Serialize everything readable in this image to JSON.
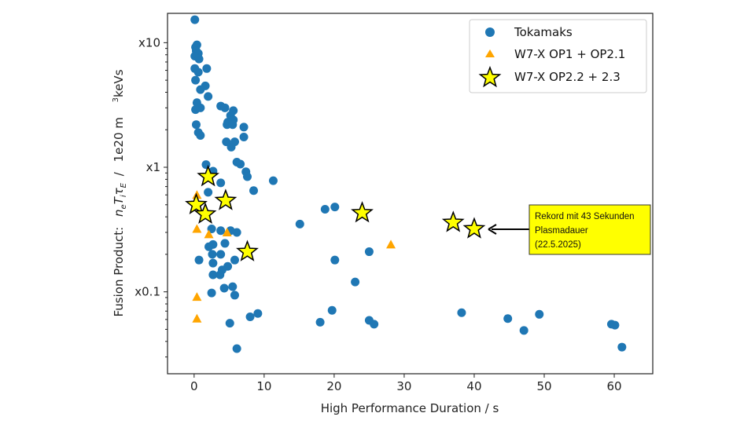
{
  "chart_data": {
    "type": "scatter",
    "xlabel": "High Performance Duration / s",
    "ylabel": {
      "prefix": "Fusion Product:",
      "math": [
        "n",
        "e",
        "T",
        "i",
        "τ",
        "E"
      ],
      "slash": "/",
      "unit": "1e20 m",
      "sup": "3",
      "unit_tail": "keVs"
    },
    "xlim": [
      -3.8,
      65.5
    ],
    "ylim": [
      0.022,
      17.2
    ],
    "yscale": "log",
    "xticks": [
      0,
      10,
      20,
      30,
      40,
      50,
      60
    ],
    "xtick_labels": [
      "0",
      "10",
      "20",
      "30",
      "40",
      "50",
      "60"
    ],
    "yticks": [
      10,
      1,
      0.1
    ],
    "ytick_labels": [
      "x10",
      "x1",
      "x0.1"
    ],
    "grid": false,
    "legend_position": "top-right",
    "colors": {
      "tokamaks": "#1f77b4",
      "op1": "#ffa500",
      "op22": "#ffff00"
    },
    "series": [
      {
        "name": "Tokamaks",
        "marker": "circle",
        "points": [
          [
            0.1,
            15.3
          ],
          [
            0.4,
            9.6
          ],
          [
            0.2,
            9.2
          ],
          [
            0.3,
            8.6
          ],
          [
            0.6,
            8.2
          ],
          [
            0.1,
            7.8
          ],
          [
            0.7,
            7.4
          ],
          [
            1.8,
            6.2
          ],
          [
            0.1,
            6.2
          ],
          [
            0.6,
            5.8
          ],
          [
            0.2,
            5.0
          ],
          [
            1.6,
            4.5
          ],
          [
            0.9,
            4.2
          ],
          [
            2.0,
            3.7
          ],
          [
            0.4,
            3.3
          ],
          [
            3.8,
            3.1
          ],
          [
            4.4,
            3.0
          ],
          [
            0.9,
            3.0
          ],
          [
            0.2,
            2.9
          ],
          [
            5.6,
            2.85
          ],
          [
            5.2,
            2.6
          ],
          [
            5.6,
            2.4
          ],
          [
            4.8,
            2.3
          ],
          [
            4.7,
            2.2
          ],
          [
            5.5,
            2.2
          ],
          [
            7.1,
            2.1
          ],
          [
            0.3,
            2.2
          ],
          [
            0.6,
            1.9
          ],
          [
            0.9,
            1.8
          ],
          [
            7.1,
            1.75
          ],
          [
            4.6,
            1.6
          ],
          [
            5.8,
            1.6
          ],
          [
            5.3,
            1.45
          ],
          [
            6.1,
            1.1
          ],
          [
            6.6,
            1.06
          ],
          [
            7.4,
            0.92
          ],
          [
            7.6,
            0.84
          ],
          [
            1.7,
            1.05
          ],
          [
            2.7,
            0.93
          ],
          [
            3.8,
            0.75
          ],
          [
            2.0,
            0.63
          ],
          [
            8.5,
            0.65
          ],
          [
            11.3,
            0.78
          ],
          [
            2.5,
            0.32
          ],
          [
            3.8,
            0.31
          ],
          [
            6.1,
            0.3
          ],
          [
            5.2,
            0.31
          ],
          [
            4.4,
            0.245
          ],
          [
            2.7,
            0.24
          ],
          [
            2.1,
            0.23
          ],
          [
            2.6,
            0.2
          ],
          [
            3.8,
            0.2
          ],
          [
            0.7,
            0.18
          ],
          [
            2.7,
            0.17
          ],
          [
            5.8,
            0.18
          ],
          [
            4.8,
            0.16
          ],
          [
            4.0,
            0.15
          ],
          [
            2.7,
            0.137
          ],
          [
            3.7,
            0.137
          ],
          [
            5.5,
            0.11
          ],
          [
            4.3,
            0.107
          ],
          [
            2.5,
            0.098
          ],
          [
            5.8,
            0.094
          ],
          [
            8.0,
            0.063
          ],
          [
            9.1,
            0.067
          ],
          [
            5.1,
            0.056
          ],
          [
            6.1,
            0.035
          ],
          [
            15.1,
            0.35
          ],
          [
            18.7,
            0.46
          ],
          [
            20.1,
            0.48
          ],
          [
            20.1,
            0.18
          ],
          [
            23.0,
            0.12
          ],
          [
            25.0,
            0.21
          ],
          [
            18.0,
            0.057
          ],
          [
            19.7,
            0.071
          ],
          [
            25.0,
            0.059
          ],
          [
            25.7,
            0.055
          ],
          [
            38.2,
            0.068
          ],
          [
            44.8,
            0.061
          ],
          [
            47.1,
            0.049
          ],
          [
            49.3,
            0.066
          ],
          [
            59.6,
            0.055
          ],
          [
            60.1,
            0.054
          ],
          [
            61.1,
            0.036
          ]
        ]
      },
      {
        "name": "W7-X OP1 + OP2.1",
        "marker": "triangle",
        "points": [
          [
            0.4,
            0.6
          ],
          [
            0.4,
            0.32
          ],
          [
            2.1,
            0.29
          ],
          [
            4.7,
            0.3
          ],
          [
            0.4,
            0.091
          ],
          [
            0.4,
            0.061
          ],
          [
            28.1,
            0.24
          ]
        ]
      },
      {
        "name": "W7-X OP2.2 + 2.3",
        "marker": "star",
        "points": [
          [
            2.0,
            0.84
          ],
          [
            0.3,
            0.5
          ],
          [
            1.6,
            0.42
          ],
          [
            4.5,
            0.54
          ],
          [
            7.6,
            0.21
          ],
          [
            24.0,
            0.43
          ],
          [
            37.0,
            0.36
          ],
          [
            40.0,
            0.32
          ]
        ]
      }
    ],
    "annotation": {
      "lines": [
        "Rekord mit 43 Sekunden",
        "Plasmadauer",
        "(22.5.2025)"
      ],
      "target": [
        40.0,
        0.32
      ]
    }
  }
}
